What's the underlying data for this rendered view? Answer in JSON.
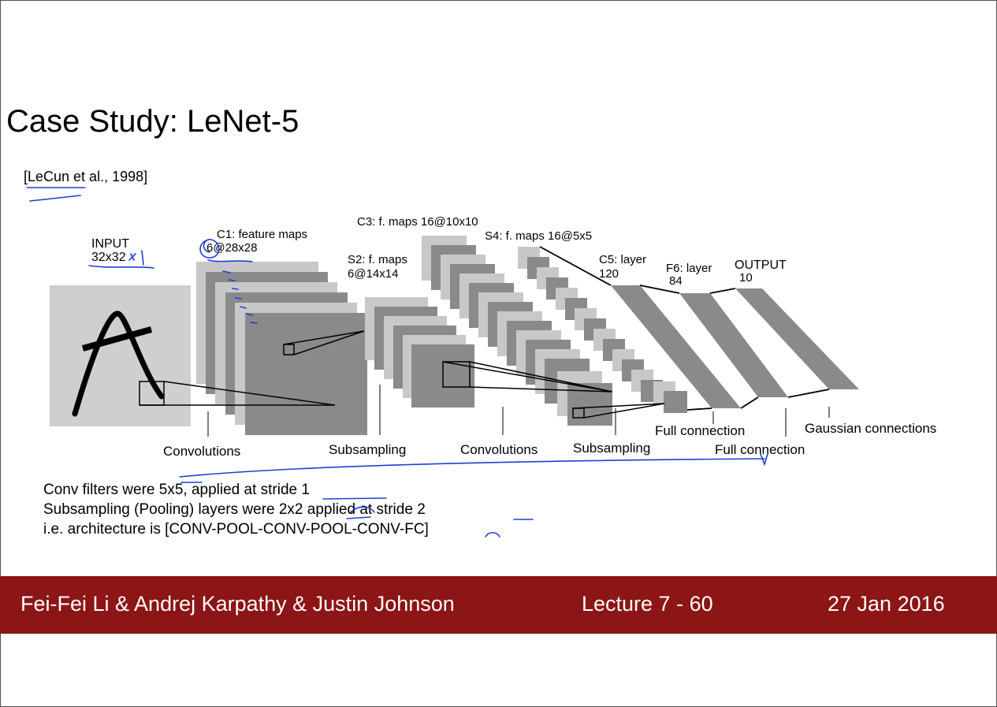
{
  "slide": {
    "title": "Case Study: LeNet-5",
    "citation": "[LeCun et al., 1998]"
  },
  "diagram": {
    "layers": {
      "input": {
        "name": "INPUT",
        "size": "32x32"
      },
      "c1": {
        "name": "C1: feature maps",
        "size": "6@28x28"
      },
      "s2": {
        "name": "S2: f. maps",
        "size": "6@14x14"
      },
      "c3": {
        "name": "C3: f. maps 16@10x10"
      },
      "s4": {
        "name": "S4: f. maps 16@5x5"
      },
      "c5": {
        "name": "C5: layer",
        "size": "120"
      },
      "f6": {
        "name": "F6: layer",
        "size": "84"
      },
      "output": {
        "name": "OUTPUT",
        "size": "10"
      }
    },
    "operations": {
      "convolutions_1": "Convolutions",
      "subsampling_1": "Subsampling",
      "convolutions_2": "Convolutions",
      "subsampling_2": "Subsampling",
      "full_connection_1": "Full connection",
      "full_connection_2": "Full connection",
      "gaussian": "Gaussian connections"
    },
    "colors": {
      "light": "#c8c8c8",
      "dark": "#8a8a8a",
      "input_bg": "#cfcfcf"
    }
  },
  "notes": [
    "Conv filters were 5x5, applied at stride 1",
    "Subsampling (Pooling) layers were 2x2 applied at stride 2",
    "i.e. architecture is [CONV-POOL-CONV-POOL-CONV-FC]"
  ],
  "footer": {
    "authors": "Fei-Fei Li & Andrej Karpathy & Justin Johnson",
    "lecture": "Lecture 7 - 60",
    "date": "27 Jan 2016",
    "background": "#8c1515"
  },
  "annotation_color": "#1f3fd6"
}
